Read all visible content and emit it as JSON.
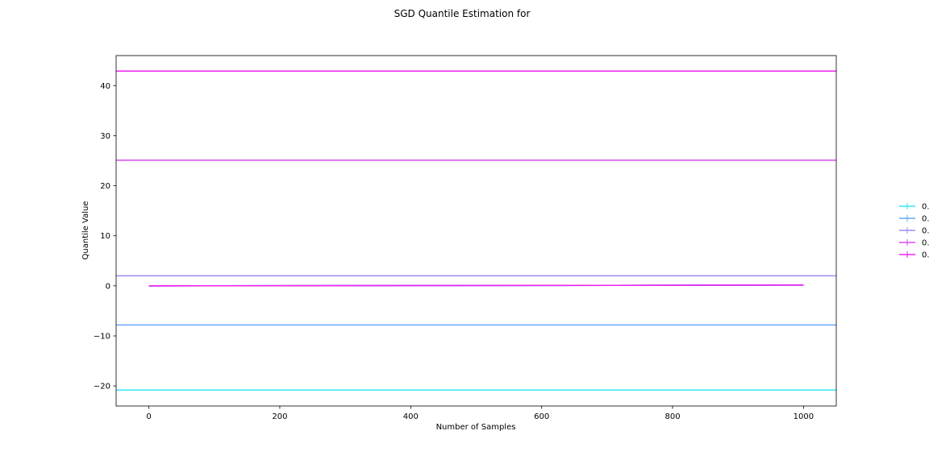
{
  "chart_data": {
    "type": "line",
    "title": "SGD Quantile Estimation for",
    "xlabel": "Number of Samples",
    "ylabel": "Quantile Value",
    "xlim": [
      -50,
      1050
    ],
    "ylim": [
      -24,
      46
    ],
    "xticks": [
      0,
      200,
      400,
      600,
      800,
      1000
    ],
    "yticks": [
      -20,
      -10,
      0,
      10,
      20,
      30,
      40
    ],
    "ytick_labels": [
      "−20",
      "−10",
      "0",
      "10",
      "20",
      "30",
      "40"
    ],
    "grid": false,
    "legend_position": "right",
    "true_quantile_lines": [
      {
        "value": -20.8,
        "color": "#33e6f2"
      },
      {
        "value": -7.8,
        "color": "#66aaf8"
      },
      {
        "value": 2.0,
        "color": "#9a8cf5"
      },
      {
        "value": 25.1,
        "color": "#d84af0"
      },
      {
        "value": 42.9,
        "color": "#ee22ee"
      }
    ],
    "series": [
      {
        "legend": "0.",
        "color": "#33e6f2",
        "x": [
          0,
          1000
        ],
        "y": [
          0.0,
          0.15
        ]
      },
      {
        "legend": "0.",
        "color": "#66aaf8",
        "x": [
          0,
          1000
        ],
        "y": [
          0.0,
          0.15
        ]
      },
      {
        "legend": "0.",
        "color": "#9a8cf5",
        "x": [
          0,
          1000
        ],
        "y": [
          0.0,
          0.15
        ]
      },
      {
        "legend": "0.",
        "color": "#d84af0",
        "x": [
          0,
          1000
        ],
        "y": [
          0.0,
          0.15
        ]
      },
      {
        "legend": "0.",
        "color": "#ee22ee",
        "x": [
          0,
          1000
        ],
        "y": [
          0.0,
          0.15
        ]
      }
    ]
  }
}
